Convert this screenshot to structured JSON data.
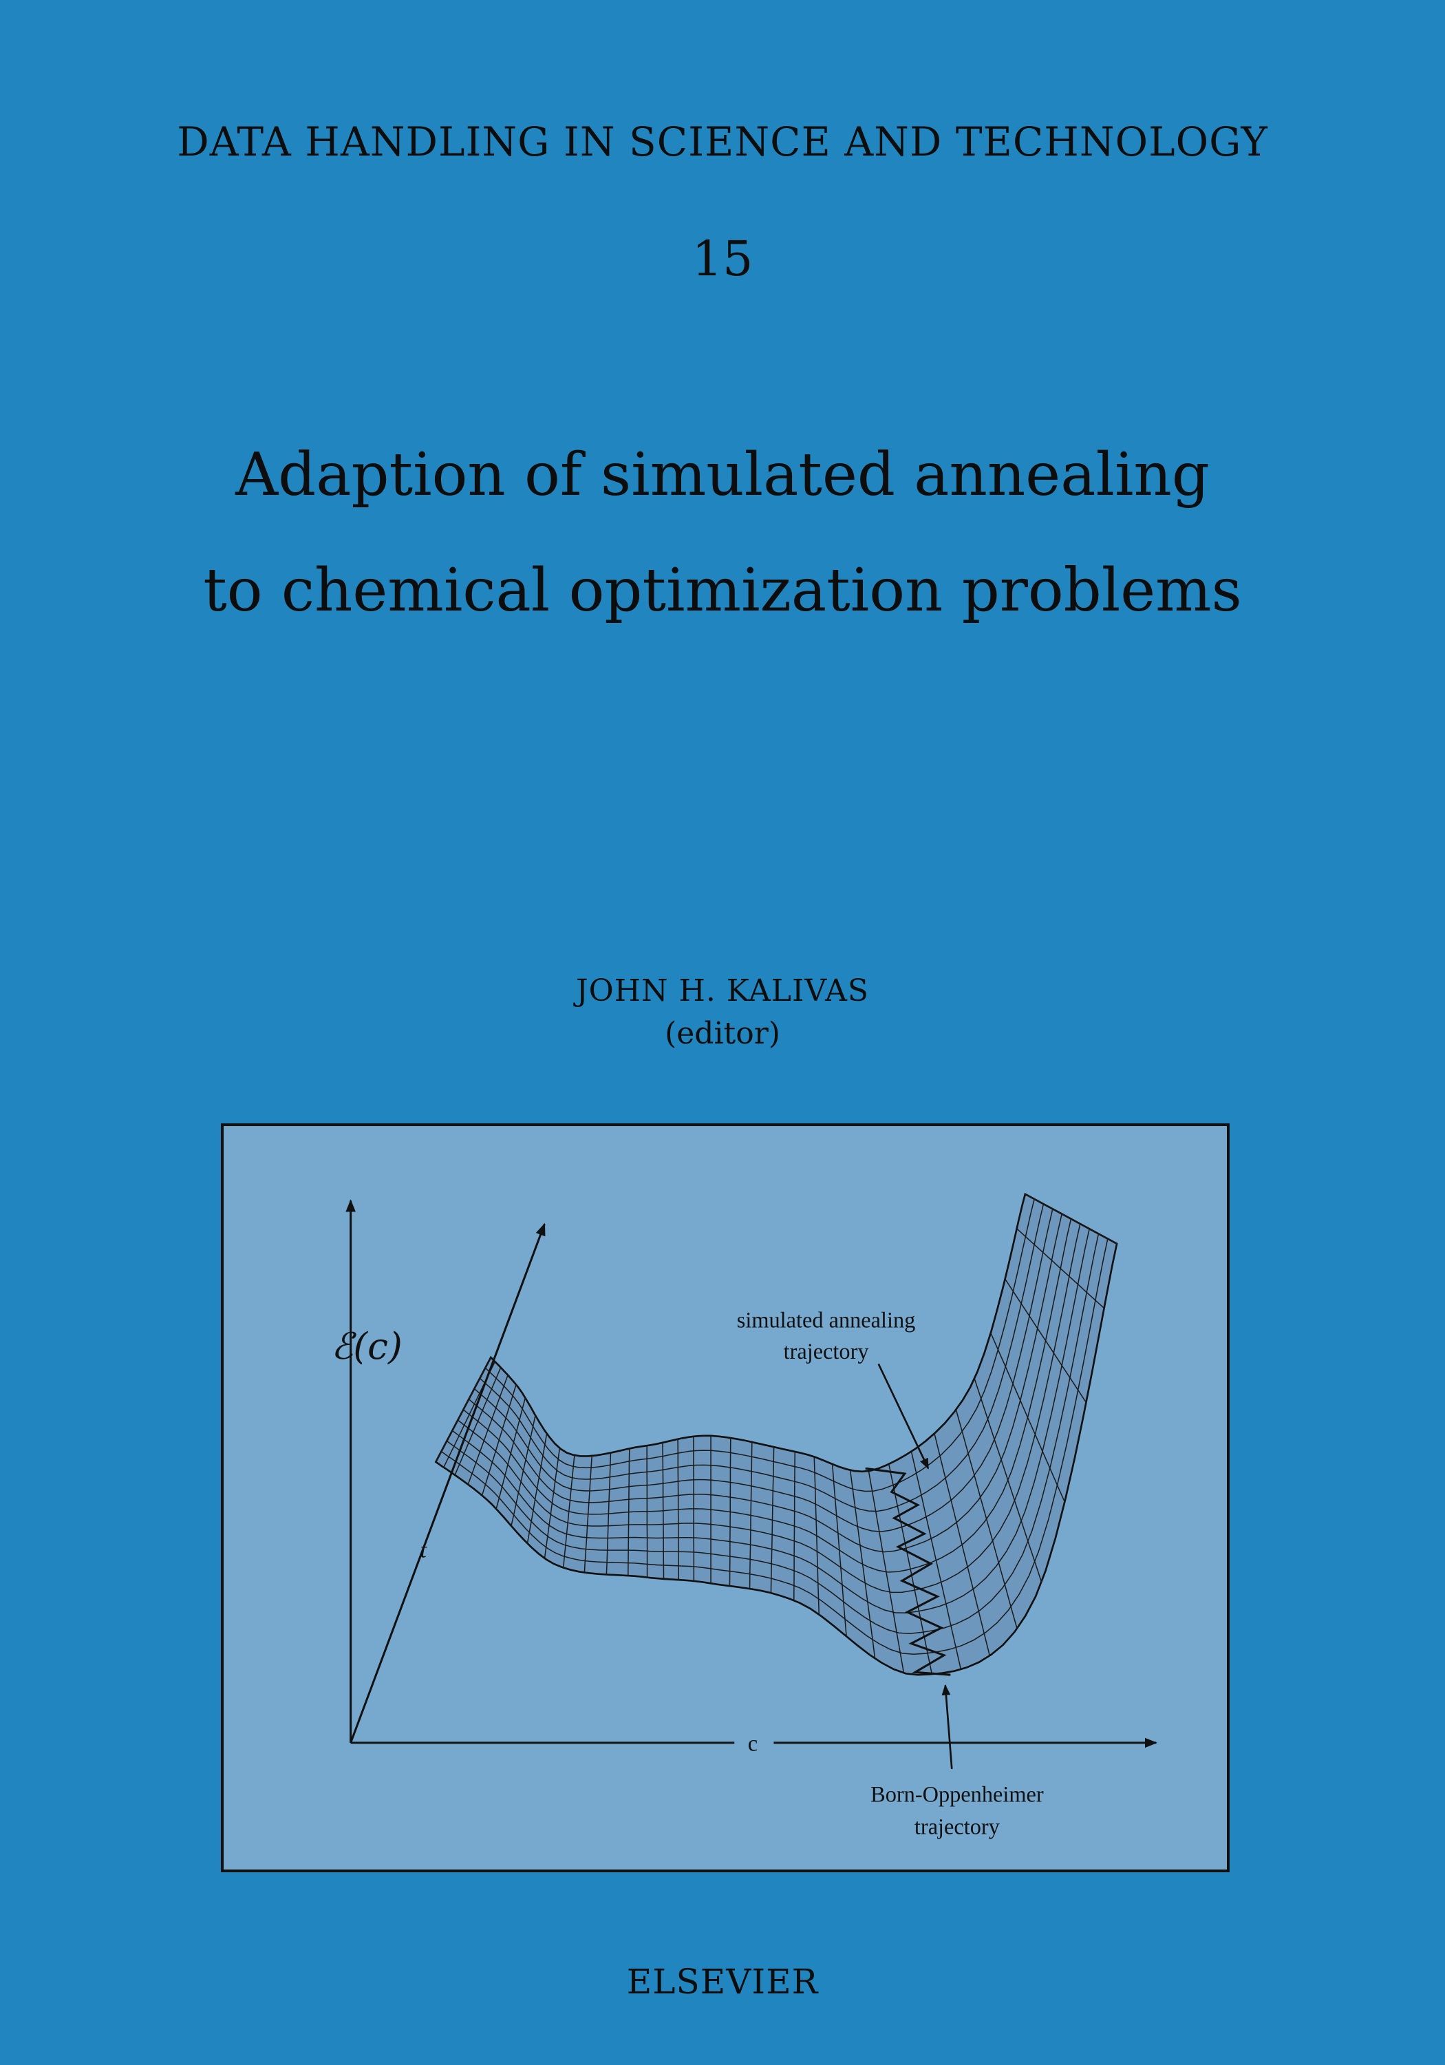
{
  "series_title": "DATA HANDLING IN SCIENCE AND TECHNOLOGY",
  "volume": "15",
  "title_line1": "Adaption of simulated annealing",
  "title_line2": "to chemical optimization problems",
  "author": "JOHN H. KALIVAS",
  "author_role": "(editor)",
  "figure": {
    "y_axis_label": "ℰ(c)",
    "x_axis_label": "c",
    "depth_axis_label": "t",
    "annotation_sa_line1": "simulated annealing",
    "annotation_sa_line2": "trajectory",
    "annotation_bo_line1": "Born-Oppenheimer",
    "annotation_bo_line2": "trajectory"
  },
  "publisher": "ELSEVIER",
  "colors": {
    "background": "#2186bf",
    "figure_background": "#77a9cf",
    "text": "#0d0d0d"
  }
}
